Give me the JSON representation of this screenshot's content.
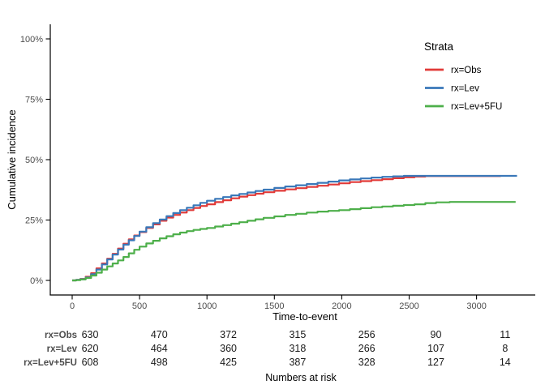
{
  "figure": {
    "y_axis_title": "Cumulative incidence",
    "x_axis_title": "Time-to-event",
    "legend": {
      "title": "Strata",
      "entries": [
        {
          "label": "rx=Obs",
          "color": "#e13a38"
        },
        {
          "label": "rx=Lev",
          "color": "#3a78b9"
        },
        {
          "label": "rx=Lev+5FU",
          "color": "#4daf4a"
        }
      ]
    },
    "colors": {
      "axis_line": "#000000",
      "tick_text": "#4d4d4d",
      "background": "#ffffff"
    }
  },
  "chart_data": {
    "type": "line",
    "title": "",
    "xlabel": "Time-to-event",
    "ylabel": "Cumulative incidence",
    "grid": false,
    "legend_position": "right-top",
    "step_interpolation": true,
    "xlim": [
      -170,
      3500
    ],
    "ylim": [
      -6,
      106
    ],
    "x_ticks": [
      0,
      500,
      1000,
      1500,
      2000,
      2500,
      3000
    ],
    "x_tick_labels": [
      "0",
      "500",
      "1000",
      "1500",
      "2000",
      "2500",
      "3000"
    ],
    "y_ticks": [
      0,
      25,
      50,
      75,
      100
    ],
    "y_tick_labels": [
      "0%",
      "25%",
      "50%",
      "75%",
      "100%"
    ],
    "series": [
      {
        "name": "rx=Obs",
        "color": "#e13a38",
        "points": [
          [
            0,
            0
          ],
          [
            30,
            0.2
          ],
          [
            60,
            0.6
          ],
          [
            100,
            1.5
          ],
          [
            140,
            3
          ],
          [
            180,
            5
          ],
          [
            220,
            7
          ],
          [
            260,
            9
          ],
          [
            300,
            11
          ],
          [
            340,
            13.2
          ],
          [
            380,
            15.2
          ],
          [
            420,
            17
          ],
          [
            460,
            18.6
          ],
          [
            500,
            20
          ],
          [
            550,
            21.7
          ],
          [
            600,
            23.2
          ],
          [
            650,
            24.7
          ],
          [
            700,
            26
          ],
          [
            750,
            27.1
          ],
          [
            800,
            28.1
          ],
          [
            850,
            29.1
          ],
          [
            900,
            30
          ],
          [
            950,
            30.8
          ],
          [
            1000,
            31.5
          ],
          [
            1060,
            32.4
          ],
          [
            1120,
            33.2
          ],
          [
            1180,
            34
          ],
          [
            1240,
            34.7
          ],
          [
            1300,
            35.3
          ],
          [
            1360,
            35.9
          ],
          [
            1420,
            36.5
          ],
          [
            1500,
            37.1
          ],
          [
            1580,
            37.7
          ],
          [
            1660,
            38.2
          ],
          [
            1740,
            38.7
          ],
          [
            1820,
            39.2
          ],
          [
            1900,
            39.7
          ],
          [
            1980,
            40.2
          ],
          [
            2060,
            40.7
          ],
          [
            2140,
            41.1
          ],
          [
            2220,
            41.5
          ],
          [
            2300,
            41.9
          ],
          [
            2380,
            42.3
          ],
          [
            2460,
            42.7
          ],
          [
            2540,
            43
          ],
          [
            2620,
            43.2
          ],
          [
            3180,
            43.2
          ]
        ]
      },
      {
        "name": "rx=Lev",
        "color": "#3a78b9",
        "points": [
          [
            0,
            0
          ],
          [
            30,
            0.2
          ],
          [
            60,
            0.5
          ],
          [
            100,
            1.2
          ],
          [
            140,
            2.6
          ],
          [
            180,
            4.5
          ],
          [
            220,
            6.6
          ],
          [
            260,
            8.7
          ],
          [
            300,
            10.7
          ],
          [
            340,
            12.8
          ],
          [
            380,
            14.8
          ],
          [
            420,
            16.6
          ],
          [
            460,
            18.4
          ],
          [
            500,
            20.2
          ],
          [
            550,
            22
          ],
          [
            600,
            23.7
          ],
          [
            650,
            25.2
          ],
          [
            700,
            26.6
          ],
          [
            750,
            27.9
          ],
          [
            800,
            29.1
          ],
          [
            850,
            30.1
          ],
          [
            900,
            31.1
          ],
          [
            950,
            32.1
          ],
          [
            1000,
            33
          ],
          [
            1060,
            33.8
          ],
          [
            1120,
            34.5
          ],
          [
            1180,
            35.2
          ],
          [
            1240,
            35.8
          ],
          [
            1300,
            36.4
          ],
          [
            1360,
            37
          ],
          [
            1420,
            37.6
          ],
          [
            1500,
            38.3
          ],
          [
            1580,
            38.9
          ],
          [
            1660,
            39.4
          ],
          [
            1740,
            39.9
          ],
          [
            1820,
            40.4
          ],
          [
            1900,
            40.9
          ],
          [
            1980,
            41.4
          ],
          [
            2060,
            41.8
          ],
          [
            2140,
            42.2
          ],
          [
            2220,
            42.6
          ],
          [
            2300,
            42.9
          ],
          [
            2380,
            43.1
          ],
          [
            2460,
            43.3
          ],
          [
            3300,
            43.3
          ]
        ]
      },
      {
        "name": "rx=Lev+5FU",
        "color": "#4daf4a",
        "points": [
          [
            0,
            0
          ],
          [
            30,
            0.1
          ],
          [
            60,
            0.4
          ],
          [
            100,
            1
          ],
          [
            140,
            2
          ],
          [
            180,
            3.2
          ],
          [
            220,
            4.5
          ],
          [
            260,
            5.8
          ],
          [
            300,
            7
          ],
          [
            340,
            8.3
          ],
          [
            380,
            9.7
          ],
          [
            420,
            11.2
          ],
          [
            460,
            12.7
          ],
          [
            500,
            14
          ],
          [
            550,
            15.3
          ],
          [
            600,
            16.4
          ],
          [
            650,
            17.4
          ],
          [
            700,
            18.3
          ],
          [
            750,
            19.1
          ],
          [
            800,
            19.8
          ],
          [
            850,
            20.4
          ],
          [
            900,
            20.9
          ],
          [
            950,
            21.3
          ],
          [
            1000,
            21.7
          ],
          [
            1060,
            22.3
          ],
          [
            1120,
            22.9
          ],
          [
            1180,
            23.5
          ],
          [
            1240,
            24.1
          ],
          [
            1300,
            24.7
          ],
          [
            1360,
            25.3
          ],
          [
            1420,
            25.9
          ],
          [
            1500,
            26.5
          ],
          [
            1580,
            27.1
          ],
          [
            1660,
            27.6
          ],
          [
            1740,
            28.1
          ],
          [
            1820,
            28.5
          ],
          [
            1900,
            28.8
          ],
          [
            1980,
            29.1
          ],
          [
            2060,
            29.5
          ],
          [
            2140,
            29.9
          ],
          [
            2220,
            30.3
          ],
          [
            2300,
            30.6
          ],
          [
            2380,
            30.9
          ],
          [
            2460,
            31.2
          ],
          [
            2540,
            31.5
          ],
          [
            2620,
            32
          ],
          [
            2700,
            32.3
          ],
          [
            2800,
            32.5
          ],
          [
            3290,
            32.5
          ]
        ]
      }
    ]
  },
  "risk_table": {
    "caption": "Numbers at risk",
    "columns": [
      "0",
      "500",
      "1000",
      "1500",
      "2000",
      "2500",
      "3000"
    ],
    "rows": [
      {
        "label": "rx=Obs",
        "values": [
          "630",
          "470",
          "372",
          "315",
          "256",
          "90",
          "11"
        ]
      },
      {
        "label": "rx=Lev",
        "values": [
          "620",
          "464",
          "360",
          "318",
          "266",
          "107",
          "8"
        ]
      },
      {
        "label": "rx=Lev+5FU",
        "values": [
          "608",
          "498",
          "425",
          "387",
          "328",
          "127",
          "14"
        ]
      }
    ]
  }
}
